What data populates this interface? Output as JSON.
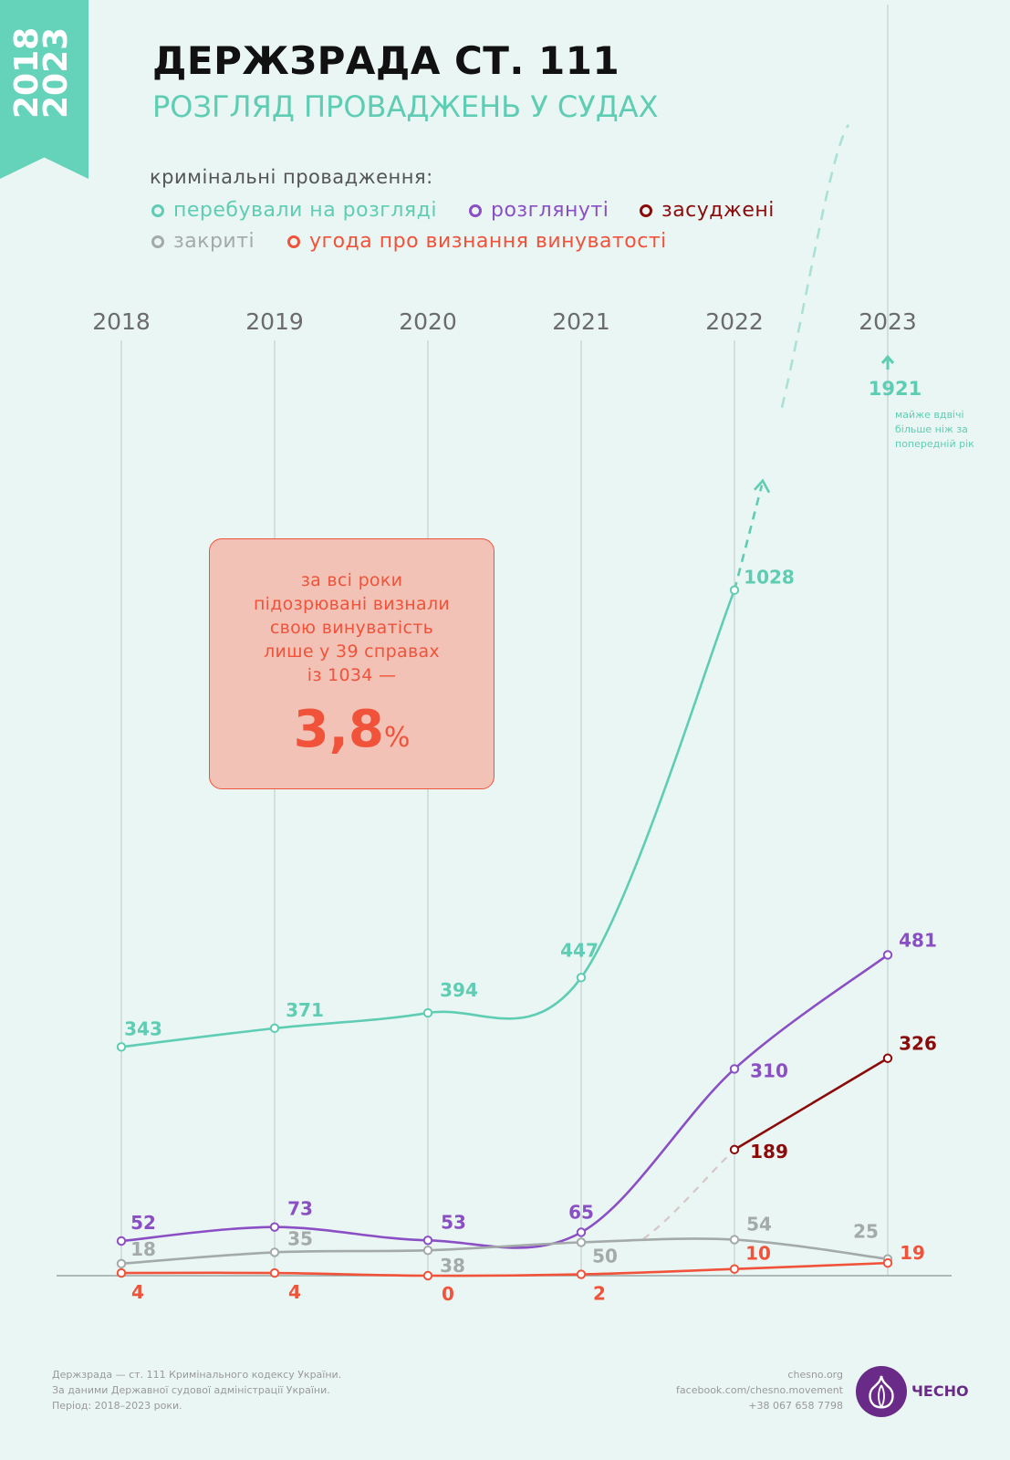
{
  "badge": {
    "years": [
      "2018",
      "2023"
    ]
  },
  "header": {
    "title": "ДЕРЖЗРАДА СТ. 111",
    "subtitle": "РОЗГЛЯД ПРОВАДЖЕНЬ У СУДАХ"
  },
  "legend": {
    "heading": "кримінальні провадження:",
    "items": [
      {
        "label": "перебували на розгляді",
        "color": "#5ecdb3"
      },
      {
        "label": "розглянуті",
        "color": "#8a4fc4"
      },
      {
        "label": "засуджені",
        "color": "#8b0a0a"
      },
      {
        "label": "закриті",
        "color": "#a3aaa8"
      },
      {
        "label": "угода про визнання  винуватості",
        "color": "#f0523a"
      }
    ]
  },
  "callout": {
    "text": "за всі роки\nпідозрювані визнали\nсвою винуватість\nлише у 39 справах\nіз 1034 —",
    "value": "3,8",
    "unit": "%"
  },
  "offscale_note": {
    "value": "1921",
    "text": "майже вдвічі\nбільше ніж за\nпопередній рік"
  },
  "chart_data": {
    "type": "line",
    "categories": [
      "2018",
      "2019",
      "2020",
      "2021",
      "2022",
      "2023"
    ],
    "series": [
      {
        "name": "перебували на розгляді",
        "color": "#5ecdb3",
        "values": [
          343,
          371,
          394,
          447,
          1028,
          1921
        ],
        "labels": [
          "343",
          "371",
          "394",
          "447",
          "1028",
          "1921"
        ]
      },
      {
        "name": "розглянуті",
        "color": "#8a4fc4",
        "values": [
          52,
          73,
          53,
          65,
          310,
          481
        ],
        "labels": [
          "52",
          "73",
          "53",
          "65",
          "310",
          "481"
        ]
      },
      {
        "name": "засуджені",
        "color": "#8b0a0a",
        "values": [
          null,
          null,
          null,
          null,
          189,
          326
        ],
        "labels": [
          "",
          "",
          "",
          "",
          "189",
          "326"
        ]
      },
      {
        "name": "закриті",
        "color": "#a3aaa8",
        "values": [
          18,
          35,
          38,
          50,
          54,
          25
        ],
        "labels": [
          "18",
          "35",
          "38",
          "50",
          "54",
          "25"
        ]
      },
      {
        "name": "угода про визнання  винуватості",
        "color": "#f0523a",
        "values": [
          4,
          4,
          0,
          2,
          10,
          19
        ],
        "labels": [
          "4",
          "4",
          "0",
          "2",
          "10",
          "19"
        ]
      }
    ],
    "title": "ДЕРЖЗРАДА СТ. 111",
    "subtitle": "РОЗГЛЯД ПРОВАДЖЕНЬ У СУДАХ",
    "ylim": [
      0,
      1200
    ],
    "grid": "vertical",
    "legend": "top-left"
  },
  "footer": {
    "source_lines": [
      "Держзрада — ст. 111 Кримінального кодексу України.",
      "За даними Державної судової адміністрації України.",
      "Період: 2018–2023 роки."
    ],
    "contact_lines": [
      "chesno.org",
      "facebook.com/chesno.movement",
      "+38 067 658 7798"
    ],
    "logo_text": "ЧЕСНО"
  }
}
